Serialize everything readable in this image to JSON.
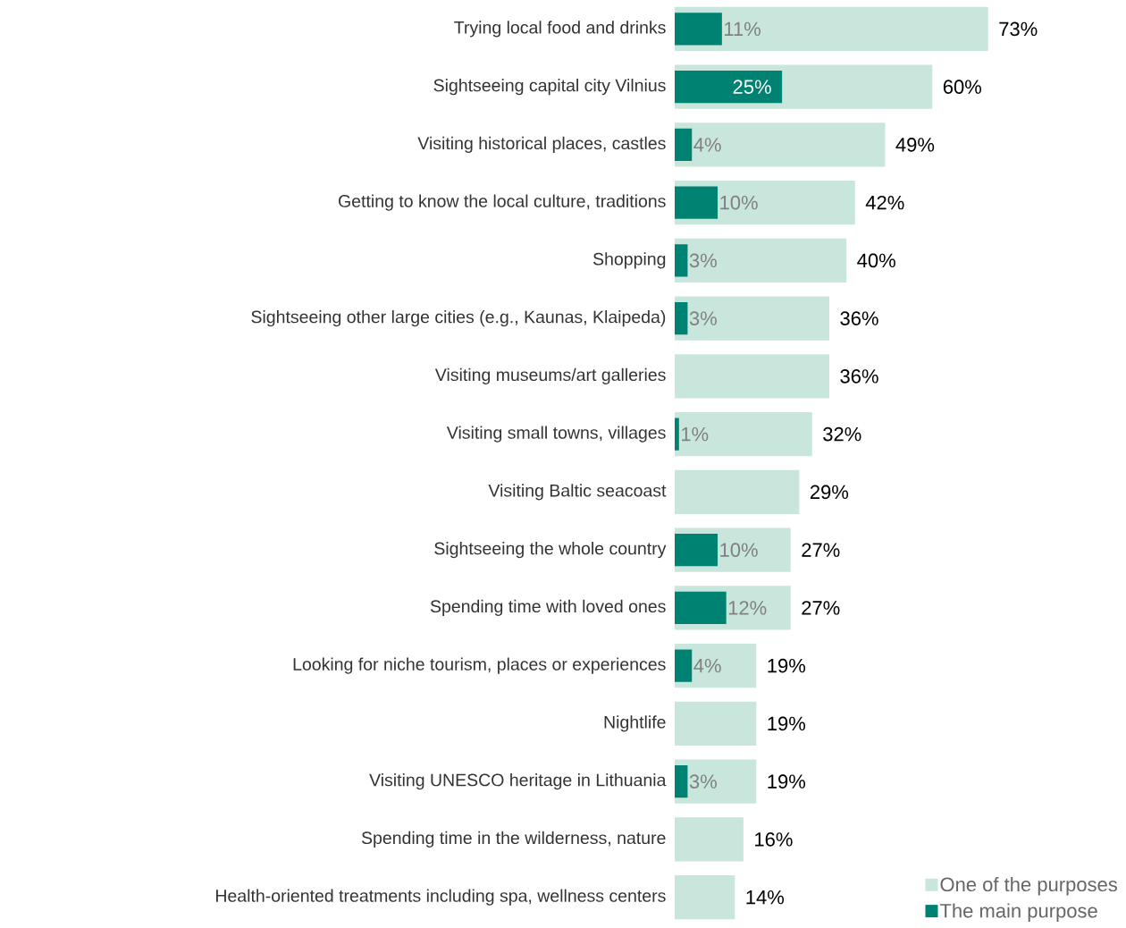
{
  "chart_data": {
    "type": "bar",
    "orientation": "horizontal",
    "legend": "bottom right",
    "categories": [
      "Trying local food and drinks",
      "Sightseeing capital city Vilnius",
      "Visiting historical places, castles",
      "Getting to know the local culture, traditions",
      "Shopping",
      "Sightseeing other large cities (e.g., Kaunas, Klaipeda)",
      "Visiting museums/art galleries",
      "Visiting small towns, villages",
      "Visiting Baltic seacoast",
      "Sightseeing the whole country",
      "Spending time with loved ones",
      "Looking for niche tourism, places or experiences",
      "Nightlife",
      "Visiting UNESCO heritage in Lithuania",
      "Spending time in the wilderness, nature",
      "Health-oriented treatments including spa, wellness centers"
    ],
    "series": [
      {
        "name": "One of the purposes",
        "color": "#c8e6dc",
        "values": [
          73,
          60,
          49,
          42,
          40,
          36,
          36,
          32,
          29,
          27,
          27,
          19,
          19,
          19,
          16,
          14
        ],
        "value_labels": [
          "73%",
          "60%",
          "49%",
          "42%",
          "40%",
          "36%",
          "36%",
          "32%",
          "29%",
          "27%",
          "27%",
          "19%",
          "19%",
          "19%",
          "16%",
          "14%"
        ]
      },
      {
        "name": "The main purpose",
        "color": "#008272",
        "values": [
          11,
          25,
          4,
          10,
          3,
          3,
          null,
          1,
          null,
          10,
          12,
          4,
          null,
          3,
          null,
          null
        ],
        "value_labels": [
          "11%",
          "25%",
          "4%",
          "10%",
          "3%",
          "3%",
          null,
          "1%",
          null,
          "10%",
          "12%",
          "4%",
          null,
          "3%",
          null,
          null
        ]
      }
    ]
  }
}
